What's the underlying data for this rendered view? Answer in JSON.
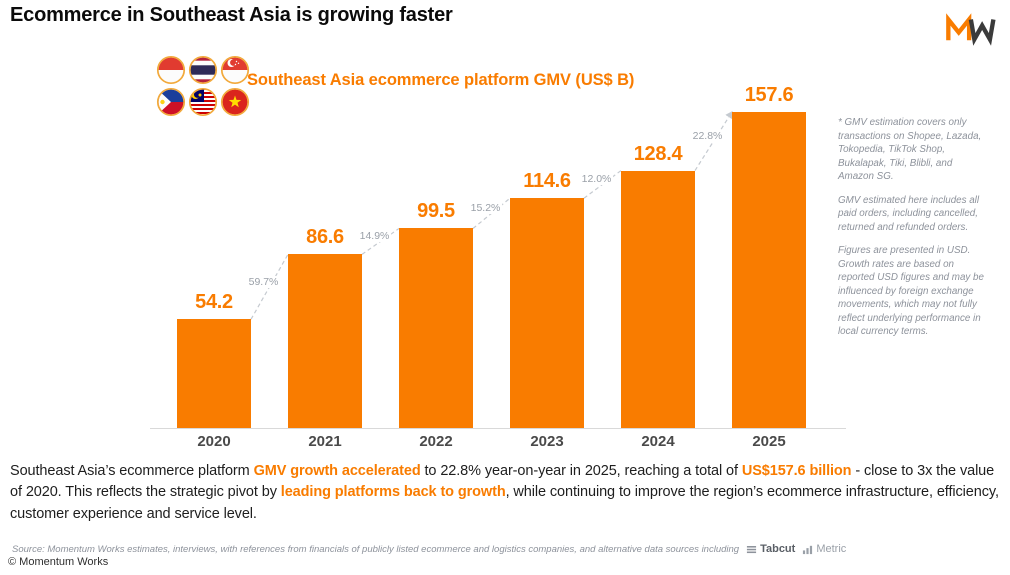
{
  "header": {
    "title": "Ecommerce in Southeast Asia is growing faster",
    "logo_name": "momentum-works-mw-logo"
  },
  "chart": {
    "subtitle": "Southeast Asia ecommerce platform GMV (US$ B)",
    "flag_icons": [
      "indonesia-flag-icon",
      "thailand-flag-icon",
      "singapore-flag-icon",
      "philippines-flag-icon",
      "malaysia-flag-icon",
      "vietnam-flag-icon"
    ]
  },
  "chart_data": {
    "type": "bar",
    "title": "Southeast Asia ecommerce platform GMV (US$ B)",
    "unit": "US$ B",
    "categories": [
      "2020",
      "2021",
      "2022",
      "2023",
      "2024",
      "2025"
    ],
    "values": [
      54.2,
      86.6,
      99.5,
      114.6,
      128.4,
      157.6
    ],
    "value_labels": [
      "54.2",
      "86.6",
      "99.5",
      "114.6",
      "128.4",
      "157.6"
    ],
    "growth_labels": [
      "59.7%",
      "14.9%",
      "15.2%",
      "12.0%",
      "22.8%"
    ],
    "bar_color": "#F97C00",
    "label_color": "#F97C00",
    "growth_label_color": "#9aa0a8",
    "ylim": [
      0,
      160
    ],
    "grid": false,
    "legend": "none"
  },
  "notes": {
    "paragraphs": [
      "* GMV estimation covers only transactions on Shopee, Lazada, Tokopedia, TikTok Shop, Bukalapak, Tiki, Blibli, and Amazon SG.",
      "GMV estimated here includes all paid orders, including cancelled, returned and refunded orders.",
      "Figures are presented in USD. Growth rates are based on reported USD figures and may be influenced by foreign exchange movements, which may not fully reflect underlying performance in local currency terms."
    ]
  },
  "summary": {
    "parts": [
      {
        "text": "Southeast Asia’s ecommerce platform ",
        "highlight": false
      },
      {
        "text": "GMV growth accelerated",
        "highlight": true
      },
      {
        "text": " to 22.8% year-on-year in 2025, reaching a total of ",
        "highlight": false
      },
      {
        "text": "US$157.6 billion",
        "highlight": true
      },
      {
        "text": "  - close to 3x the value of 2020.  This reflects the strategic pivot by ",
        "highlight": false
      },
      {
        "text": "leading platforms back to growth",
        "highlight": true
      },
      {
        "text": ", while continuing to improve the region’s ecommerce infrastructure, efficiency, customer experience and service level.",
        "highlight": false
      }
    ]
  },
  "footer": {
    "source_text": "Source: Momentum Works estimates, interviews, with references from financials of publicly listed ecommerce and logistics companies,  and alternative data sources including",
    "tabcut_label": "Tabcut",
    "tabcut_icon": "list-lines-icon",
    "metric_label": "Metric",
    "metric_icon": "bar-chart-icon",
    "copyright": "© Momentum Works"
  }
}
